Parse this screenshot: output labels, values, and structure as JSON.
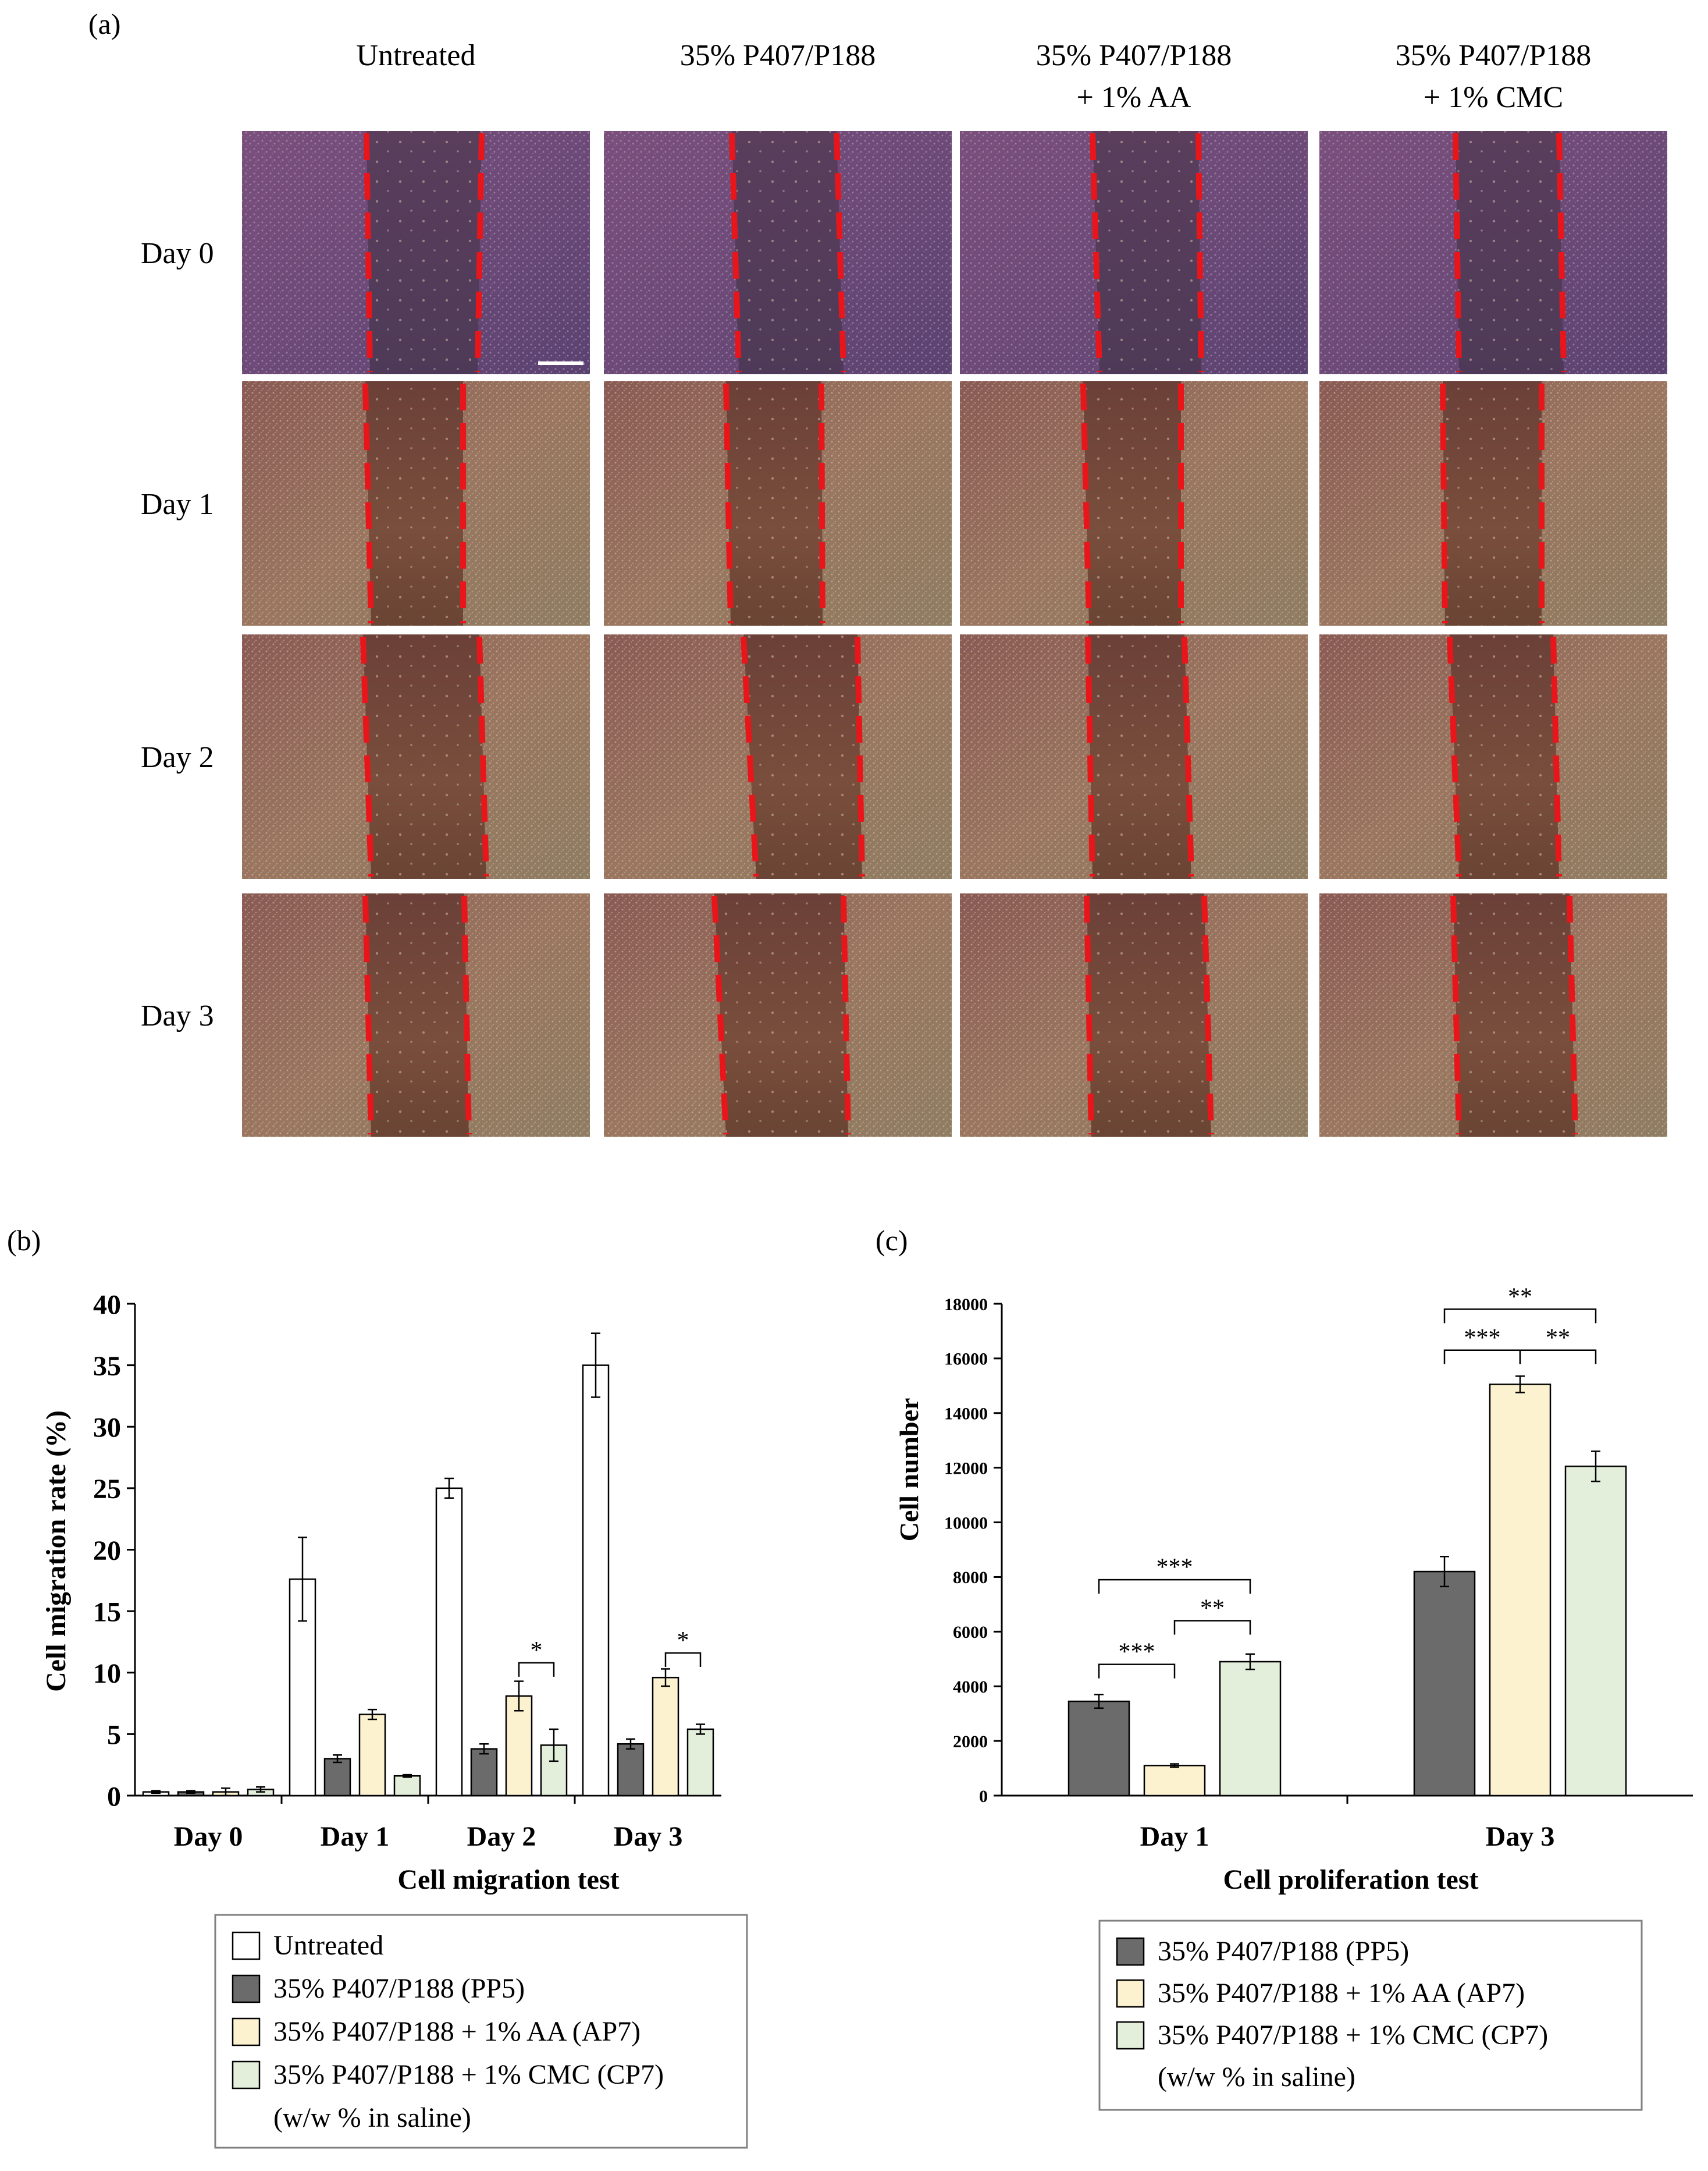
{
  "panel_a": {
    "label": "(a)",
    "columns": [
      {
        "line1": "Untreated",
        "line2": ""
      },
      {
        "line1": "35% P407/P188",
        "line2": ""
      },
      {
        "line1": "35% P407/P188",
        "line2": "+ 1% AA"
      },
      {
        "line1": "35% P407/P188",
        "line2": "+ 1% CMC"
      }
    ],
    "rows": [
      "Day 0",
      "Day 1",
      "Day 2",
      "Day 3"
    ],
    "wound_line_color": "#e8161b"
  },
  "chart_data": [
    {
      "panel": "(b)",
      "type": "bar",
      "categories": [
        "Day 0",
        "Day 1",
        "Day 2",
        "Day 3"
      ],
      "xlabel": "Cell migration test",
      "ylabel": "Cell migration rate (%)",
      "ylim": [
        0,
        40
      ],
      "yticks": [
        0,
        5,
        10,
        15,
        20,
        25,
        30,
        35,
        40
      ],
      "series": [
        {
          "name": "Untreated",
          "color": "#ffffff",
          "values": [
            0.3,
            17.6,
            25.0,
            35.0
          ],
          "errors": [
            0.1,
            3.4,
            0.8,
            2.6
          ]
        },
        {
          "name": "35% P407/P188 (PP5)",
          "color": "#6b6b6b",
          "values": [
            0.3,
            3.0,
            3.8,
            4.2
          ],
          "errors": [
            0.1,
            0.3,
            0.4,
            0.4
          ]
        },
        {
          "name": "35% P407/P188 + 1% AA (AP7)",
          "color": "#fdf2cf",
          "values": [
            0.3,
            6.6,
            8.1,
            9.6
          ],
          "errors": [
            0.3,
            0.4,
            1.2,
            0.7
          ]
        },
        {
          "name": "35% P407/P188 + 1% CMC (CP7)",
          "color": "#e3eedb",
          "values": [
            0.5,
            1.6,
            4.1,
            5.4
          ],
          "errors": [
            0.2,
            0.1,
            1.3,
            0.4
          ]
        }
      ],
      "annotations": [
        {
          "category": 2,
          "from": 2,
          "to": 3,
          "text": "*",
          "level": 10.8
        },
        {
          "category": 3,
          "from": 2,
          "to": 3,
          "text": "*",
          "level": 11.6
        }
      ],
      "legend": {
        "position": "bottom",
        "entries": [
          "Untreated",
          "35% P407/P188 (PP5)",
          "35% P407/P188 + 1% AA (AP7)",
          "35% P407/P188 + 1% CMC (CP7)"
        ],
        "note": "(w/w % in saline)"
      }
    },
    {
      "panel": "(c)",
      "type": "bar",
      "categories": [
        "Day 1",
        "Day 3"
      ],
      "xlabel": "Cell proliferation test",
      "ylabel": "Cell number",
      "ylim": [
        0,
        18000
      ],
      "yticks": [
        0,
        2000,
        4000,
        6000,
        8000,
        10000,
        12000,
        14000,
        16000,
        18000
      ],
      "series": [
        {
          "name": "35% P407/P188 (PP5)",
          "color": "#6b6b6b",
          "values": [
            3450,
            8200
          ],
          "errors": [
            250,
            550
          ]
        },
        {
          "name": "35% P407/P188 + 1% AA (AP7)",
          "color": "#fdf2cf",
          "values": [
            1100,
            15050
          ],
          "errors": [
            60,
            300
          ]
        },
        {
          "name": "35% P407/P188 + 1% CMC (CP7)",
          "color": "#e3eedb",
          "values": [
            4900,
            12050
          ],
          "errors": [
            280,
            550
          ]
        }
      ],
      "annotations": [
        {
          "category": 0,
          "from": 0,
          "to": 1,
          "text": "***",
          "level": 4800
        },
        {
          "category": 0,
          "from": 1,
          "to": 2,
          "text": "**",
          "level": 6400
        },
        {
          "category": 0,
          "from": 0,
          "to": 2,
          "text": "***",
          "level": 7900
        },
        {
          "category": 1,
          "from": 0,
          "to": 1,
          "text": "***",
          "level": 16300
        },
        {
          "category": 1,
          "from": 1,
          "to": 2,
          "text": "**",
          "level": 16300
        },
        {
          "category": 1,
          "from": 0,
          "to": 2,
          "text": "**",
          "level": 17800
        }
      ],
      "legend": {
        "position": "bottom",
        "entries": [
          "35% P407/P188 (PP5)",
          "35% P407/P188 + 1% AA (AP7)",
          "35% P407/P188 + 1% CMC (CP7)"
        ],
        "note": "(w/w % in saline)"
      }
    }
  ]
}
